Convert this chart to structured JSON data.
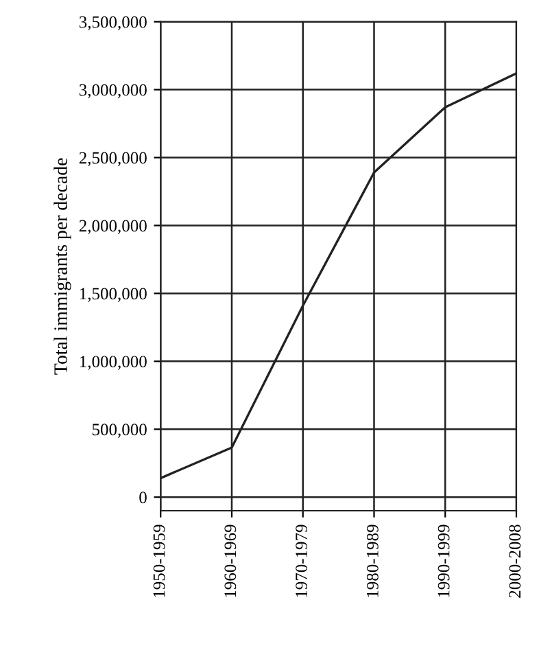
{
  "chart_data": {
    "type": "line",
    "ylabel": "Total immigrants per decade",
    "categories": [
      "1950-1959",
      "1960-1969",
      "1970-1979",
      "1980-1989",
      "1990-1999",
      "2000-2008"
    ],
    "series": [
      {
        "color": "#222222",
        "values": [
          140000,
          365000,
          1410000,
          2390000,
          2870000,
          3120000
        ]
      }
    ],
    "ylim": [
      -100000,
      3500000
    ],
    "yticks": [
      {
        "value": 0,
        "label": "0"
      },
      {
        "value": 500000,
        "label": "500,000"
      },
      {
        "value": 1000000,
        "label": "1,000,000"
      },
      {
        "value": 1500000,
        "label": "1,500,000"
      },
      {
        "value": 2000000,
        "label": "2,000,000"
      },
      {
        "value": 2500000,
        "label": "2,500,000"
      },
      {
        "value": 3000000,
        "label": "3,000,000"
      },
      {
        "value": 3500000,
        "label": "3,500,000"
      }
    ],
    "grid": true,
    "marker": "none",
    "line_style": "solid"
  }
}
